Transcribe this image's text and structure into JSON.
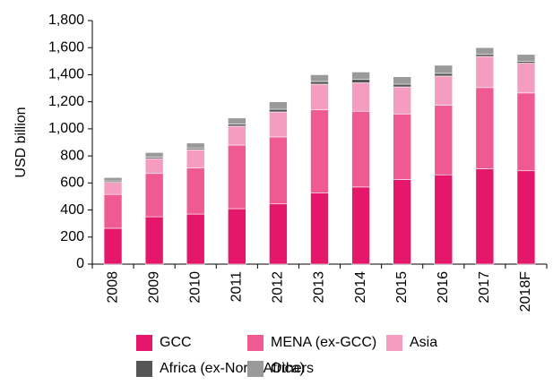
{
  "chart_data": {
    "type": "stacked_bar",
    "ylabel": "USD billion",
    "categories": [
      "2008",
      "2009",
      "2010",
      "2011",
      "2012",
      "2013",
      "2014",
      "2015",
      "2016",
      "2017",
      "2018F"
    ],
    "series": [
      {
        "name": "GCC",
        "color": "#e5176b",
        "values": [
          265,
          350,
          370,
          410,
          445,
          525,
          570,
          625,
          660,
          705,
          690
        ]
      },
      {
        "name": "MENA (ex-GCC)",
        "color": "#ef5a92",
        "values": [
          250,
          320,
          340,
          470,
          495,
          615,
          560,
          485,
          515,
          600,
          575
        ]
      },
      {
        "name": "Asia",
        "color": "#f59dc0",
        "values": [
          90,
          110,
          135,
          140,
          185,
          190,
          210,
          200,
          215,
          230,
          220
        ]
      },
      {
        "name": "Africa (ex-North Africa)",
        "color": "#555555",
        "values": [
          10,
          10,
          10,
          15,
          20,
          20,
          25,
          20,
          20,
          15,
          15
        ]
      },
      {
        "name": "Others",
        "color": "#9a9a9a",
        "values": [
          25,
          35,
          40,
          45,
          55,
          50,
          55,
          55,
          60,
          50,
          50
        ]
      }
    ],
    "ylim": [
      0,
      1800
    ],
    "yticks": [
      0,
      200,
      400,
      600,
      800,
      {
        "value": 1000,
        "label": "1,000"
      },
      {
        "value": 1200,
        "label": "1,200"
      },
      {
        "value": 1400,
        "label": "1,400"
      },
      {
        "value": 1600,
        "label": "1,600"
      },
      {
        "value": 1800,
        "label": "1,800"
      }
    ]
  }
}
